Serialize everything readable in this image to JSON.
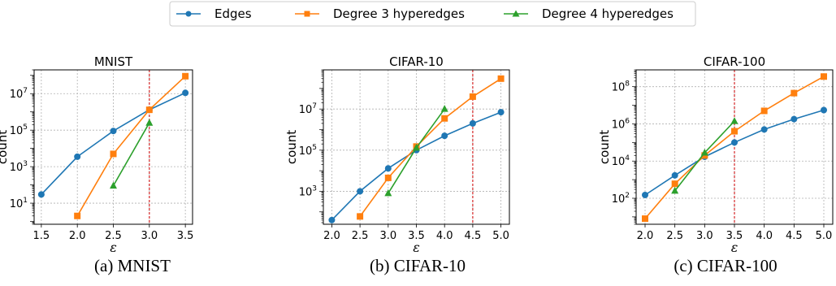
{
  "legend": [
    {
      "name": "Edges",
      "color": "#1f77b4",
      "marker": "circle"
    },
    {
      "name": "Degree 3 hyperedges",
      "color": "#ff7f0e",
      "marker": "square"
    },
    {
      "name": "Degree 4 hyperedges",
      "color": "#2ca02c",
      "marker": "triangle"
    }
  ],
  "chart_data": [
    {
      "type": "line",
      "title": "MNIST",
      "caption": "(a) MNIST",
      "xlabel": "ε",
      "ylabel": "count",
      "yscale": "log",
      "xlim": [
        1.4,
        3.6
      ],
      "ylim": [
        0.7,
        200000000
      ],
      "xticks": [
        "1.5",
        "2.0",
        "2.5",
        "3.0",
        "3.5"
      ],
      "yticks": [
        {
          "base": "10",
          "exp": "1"
        },
        {
          "base": "10",
          "exp": "3"
        },
        {
          "base": "10",
          "exp": "5"
        },
        {
          "base": "10",
          "exp": "7"
        }
      ],
      "ytick_values": [
        10,
        1000,
        100000,
        10000000
      ],
      "grid": true,
      "vline": 3.0,
      "series": [
        {
          "name": "Edges",
          "x": [
            1.5,
            2.0,
            2.5,
            3.0,
            3.5
          ],
          "y": [
            30,
            3500,
            90000,
            1300000,
            11000000
          ]
        },
        {
          "name": "Degree 3 hyperedges",
          "x": [
            2.0,
            2.5,
            3.0,
            3.5
          ],
          "y": [
            2,
            5000,
            1300000,
            90000000
          ]
        },
        {
          "name": "Degree 4 hyperedges",
          "x": [
            2.5,
            3.0
          ],
          "y": [
            90,
            250000
          ]
        }
      ]
    },
    {
      "type": "line",
      "title": "CIFAR-10",
      "caption": "(b) CIFAR-10",
      "xlabel": "ε",
      "ylabel": "count",
      "yscale": "log",
      "xlim": [
        1.85,
        5.15
      ],
      "ylim": [
        25,
        800000000
      ],
      "xticks": [
        "2.0",
        "2.5",
        "3.0",
        "3.5",
        "4.0",
        "4.5",
        "5.0"
      ],
      "yticks": [
        {
          "base": "10",
          "exp": "3"
        },
        {
          "base": "10",
          "exp": "5"
        },
        {
          "base": "10",
          "exp": "7"
        }
      ],
      "ytick_values": [
        1000,
        100000,
        10000000
      ],
      "grid": true,
      "vline": 4.5,
      "series": [
        {
          "name": "Edges",
          "x": [
            2.0,
            2.5,
            3.0,
            3.5,
            4.0,
            4.5,
            5.0
          ],
          "y": [
            40,
            1000,
            13000,
            100000,
            500000,
            2000000,
            7000000
          ]
        },
        {
          "name": "Degree 3 hyperedges",
          "x": [
            2.5,
            3.0,
            3.5,
            4.0,
            4.5,
            5.0
          ],
          "y": [
            60,
            4500,
            150000,
            3500000,
            40000000,
            300000000
          ]
        },
        {
          "name": "Degree 4 hyperedges",
          "x": [
            3.0,
            3.5,
            4.0
          ],
          "y": [
            800,
            130000,
            10000000
          ]
        }
      ]
    },
    {
      "type": "line",
      "title": "CIFAR-100",
      "caption": "(c) CIFAR-100",
      "xlabel": "ε",
      "ylabel": "count",
      "yscale": "log",
      "xlim": [
        1.85,
        5.15
      ],
      "ylim": [
        4,
        800000000
      ],
      "xticks": [
        "2.0",
        "2.5",
        "3.0",
        "3.5",
        "4.0",
        "4.5",
        "5.0"
      ],
      "yticks": [
        {
          "base": "10",
          "exp": "2"
        },
        {
          "base": "10",
          "exp": "4"
        },
        {
          "base": "10",
          "exp": "6"
        },
        {
          "base": "10",
          "exp": "8"
        }
      ],
      "ytick_values": [
        100,
        10000,
        1000000,
        100000000
      ],
      "grid": true,
      "vline": 3.5,
      "series": [
        {
          "name": "Edges",
          "x": [
            2.0,
            2.5,
            3.0,
            3.5,
            4.0,
            4.5,
            5.0
          ],
          "y": [
            150,
            1700,
            17000,
            100000,
            500000,
            1800000,
            5500000
          ]
        },
        {
          "name": "Degree 3 hyperedges",
          "x": [
            2.0,
            2.5,
            3.0,
            3.5,
            4.0,
            4.5,
            5.0
          ],
          "y": [
            8,
            600,
            20000,
            400000,
            5000000,
            45000000,
            350000000
          ]
        },
        {
          "name": "Degree 4 hyperedges",
          "x": [
            2.5,
            3.0,
            3.5
          ],
          "y": [
            250,
            28000,
            1400000
          ]
        }
      ]
    }
  ]
}
